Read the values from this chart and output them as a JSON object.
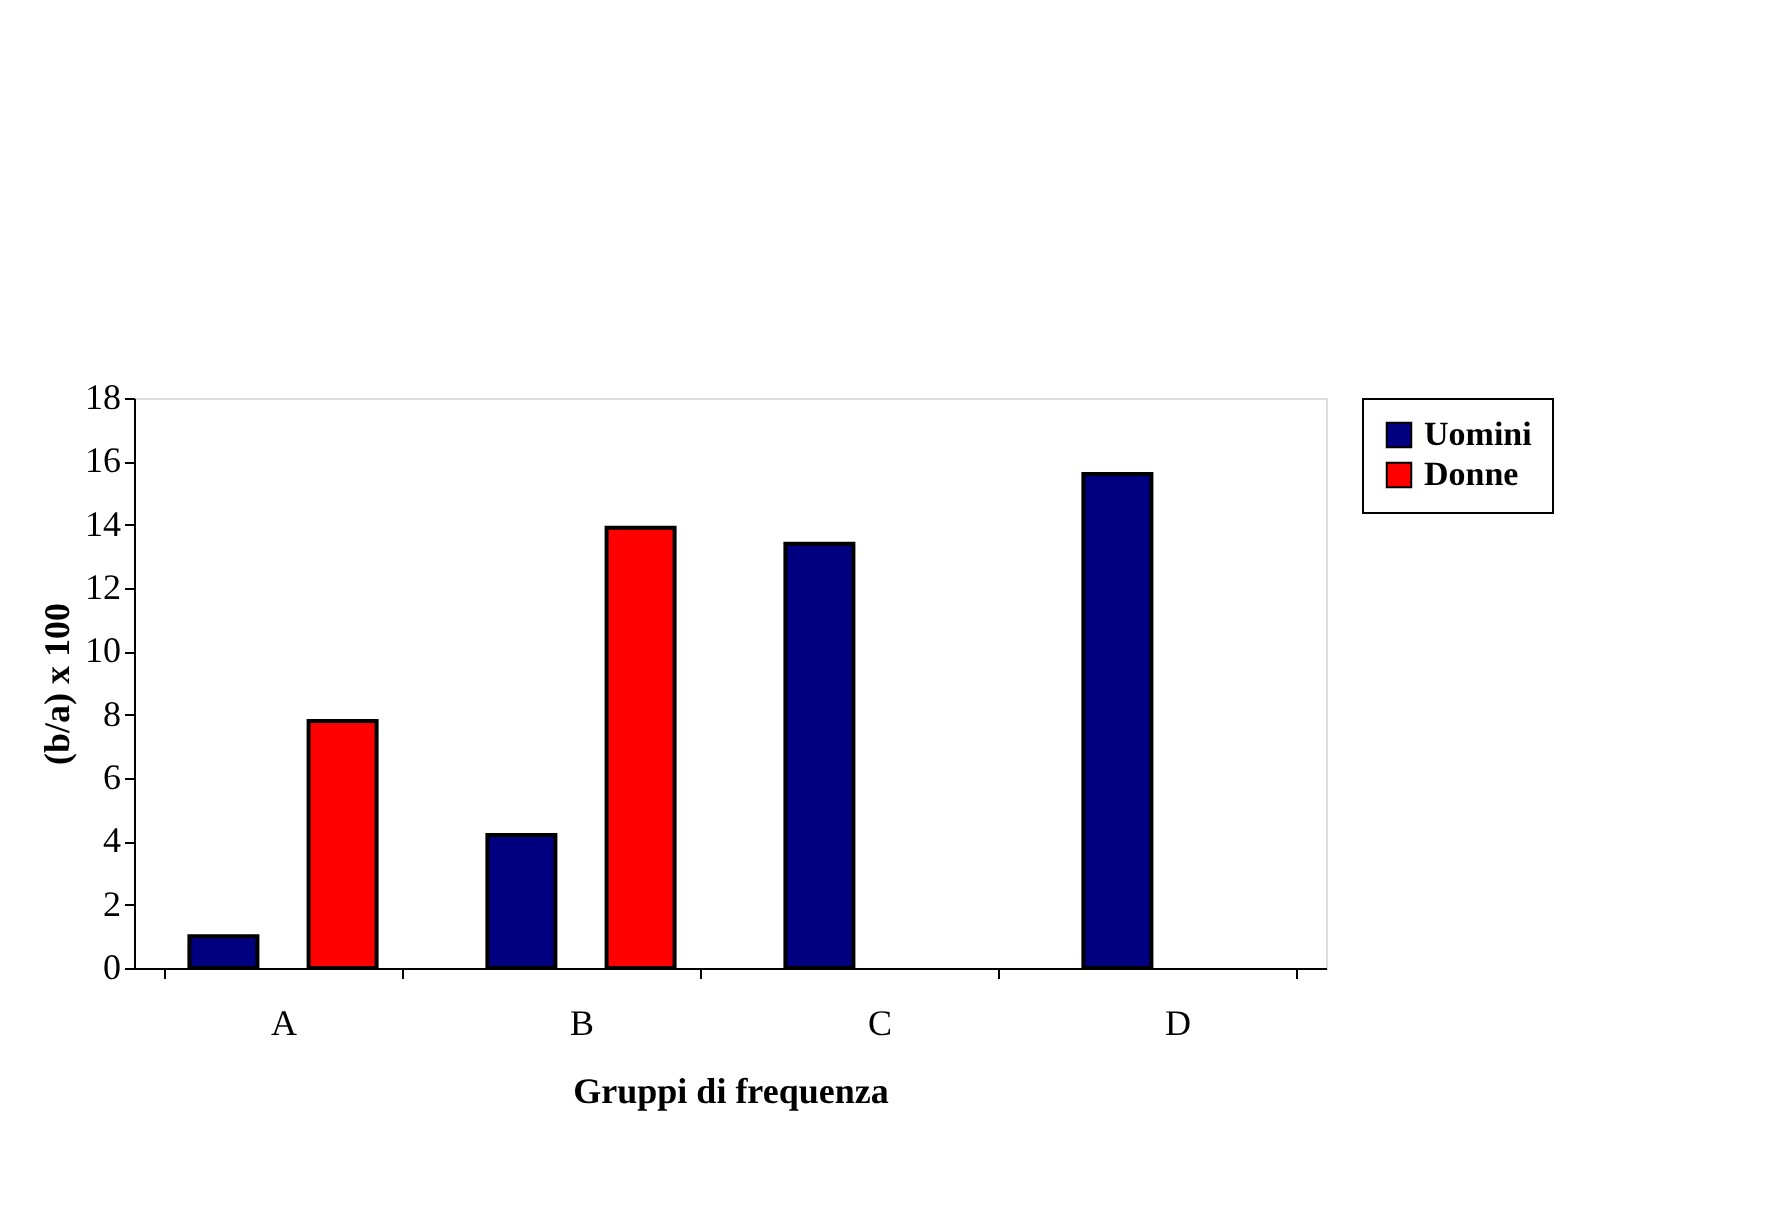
{
  "chart_data": {
    "type": "bar",
    "xlabel": "Gruppi di frequenza",
    "ylabel": "(b/a) x 100",
    "categories": [
      "A",
      "B",
      "C",
      "D"
    ],
    "series": [
      {
        "name": "Uomini",
        "color": "#000080",
        "values": [
          1.0,
          4.2,
          13.4,
          15.6
        ]
      },
      {
        "name": "Donne",
        "color": "#ff0000",
        "values": [
          7.8,
          13.9,
          null,
          null
        ]
      }
    ],
    "ylim": [
      0,
      18
    ],
    "yticks": [
      0,
      2,
      4,
      6,
      8,
      10,
      12,
      14,
      16,
      18
    ],
    "grid": false,
    "legend": "right"
  }
}
